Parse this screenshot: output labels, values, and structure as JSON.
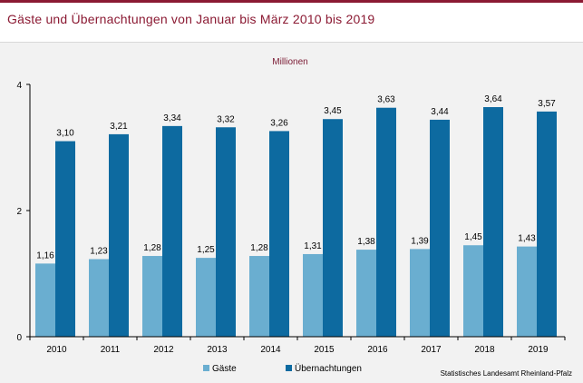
{
  "title": "Gäste und Übernachtungen von Januar bis März 2010 bis 2019",
  "source": "Statistisches Landesamt Rheinland-Pfalz",
  "colors": {
    "guests": "#6aaed0",
    "nights": "#0d6aa0",
    "accent": "#8b1a33",
    "plot_bg": "#f2f2f2"
  },
  "chart_data": {
    "type": "bar",
    "ylabel": "Millionen",
    "ylim": [
      0,
      4
    ],
    "yticks": [
      "0",
      "2",
      "4"
    ],
    "ytick_values": [
      0,
      2,
      4
    ],
    "categories": [
      "2010",
      "2011",
      "2012",
      "2013",
      "2014",
      "2015",
      "2016",
      "2017",
      "2018",
      "2019"
    ],
    "series": [
      {
        "name": "Gäste",
        "values": [
          1.16,
          1.23,
          1.28,
          1.25,
          1.28,
          1.31,
          1.38,
          1.39,
          1.45,
          1.43
        ],
        "labels": [
          "1,16",
          "1,23",
          "1,28",
          "1,25",
          "1,28",
          "1,31",
          "1,38",
          "1,39",
          "1,45",
          "1,43"
        ]
      },
      {
        "name": "Übernachtungen",
        "values": [
          3.1,
          3.21,
          3.34,
          3.32,
          3.26,
          3.45,
          3.63,
          3.44,
          3.64,
          3.57
        ],
        "labels": [
          "3,10",
          "3,21",
          "3,34",
          "3,32",
          "3,26",
          "3,45",
          "3,63",
          "3,44",
          "3,64",
          "3,57"
        ]
      }
    ],
    "legend_position": "bottom",
    "grid": false
  }
}
